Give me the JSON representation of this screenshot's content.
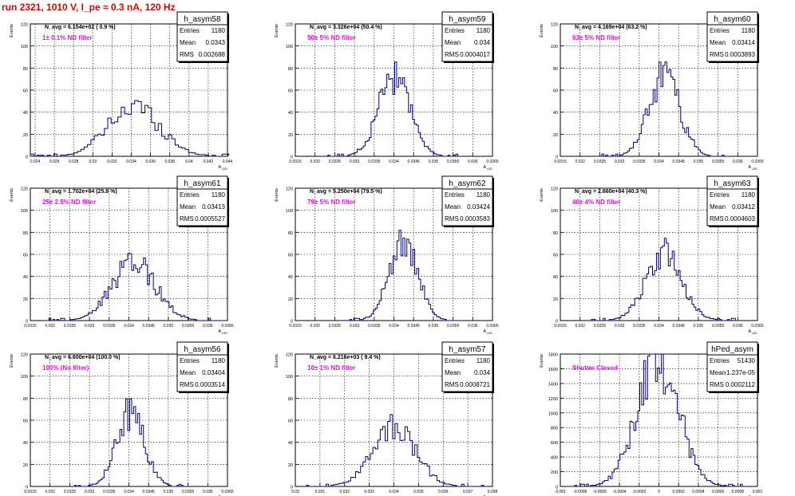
{
  "canvas_title": "run 2321,  1010 V, I_pe ≈ 0.3 nA, 120 Hz",
  "axis_labels": {
    "y": "Events",
    "x_main": "A",
    "x_sub": "LED"
  },
  "stats_labels": {
    "entries": "Entries",
    "mean": "Mean",
    "rms": "RMS"
  },
  "chart_data": [
    {
      "type": "bar",
      "hist": "h_asym58",
      "title": "",
      "xlabel": "A LED",
      "ylabel": "Events",
      "navg": "N_avg = 6.154e+02 ( 0.9 %)",
      "note": "1± 0.1% ND filter",
      "stats": {
        "entries": "1180",
        "mean": "0.0343",
        "rms": "0.002688"
      },
      "xlim": [
        0.0235,
        0.044
      ],
      "ylim": [
        0,
        120
      ],
      "xticks": [
        "0.024",
        "0.026",
        "0.028",
        "0.03",
        "0.032",
        "0.034",
        "0.036",
        "0.038",
        "0.04",
        "0.042",
        "0.044"
      ],
      "xtick_values": [
        0.024,
        0.026,
        0.028,
        0.03,
        0.032,
        0.034,
        0.036,
        0.038,
        0.04,
        0.042,
        0.044
      ],
      "yticks": [
        "0",
        "20",
        "40",
        "60",
        "80",
        "100",
        "120"
      ],
      "hist_mean": 0.0343,
      "hist_sigma": 0.0027,
      "hist_peak": 45,
      "bin_width": 0.00035
    },
    {
      "type": "bar",
      "hist": "h_asym59",
      "title": "",
      "xlabel": "A LED",
      "ylabel": "Events",
      "navg": "N_avg = 3.326e+04 (50.4 %)",
      "note": "50± 5% ND filter",
      "stats": {
        "entries": "1180",
        "mean": "0.034",
        "rms": "0.0004017"
      },
      "xlim": [
        0.0315,
        0.0365
      ],
      "ylim": [
        0,
        120
      ],
      "xticks": [
        "0.0315",
        "0.032",
        "0.0325",
        "0.033",
        "0.0335",
        "0.034",
        "0.0345",
        "0.035",
        "0.0355",
        "0.036",
        "0.0365"
      ],
      "xtick_values": [
        0.0315,
        0.032,
        0.0325,
        0.033,
        0.0335,
        0.034,
        0.0345,
        0.035,
        0.0355,
        0.036,
        0.0365
      ],
      "yticks": [
        "0",
        "20",
        "40",
        "60",
        "80",
        "100",
        "120"
      ],
      "hist_mean": 0.034,
      "hist_sigma": 0.0004,
      "hist_peak": 70,
      "bin_width": 5e-05
    },
    {
      "type": "bar",
      "hist": "h_asym60",
      "title": "",
      "xlabel": "A LED",
      "ylabel": "Events",
      "navg": "N_avg = 4.169e+04 (63.2 %)",
      "note": "63± 5% ND filter",
      "stats": {
        "entries": "1180",
        "mean": "0.03414",
        "rms": "0.0003893"
      },
      "xlim": [
        0.0315,
        0.0365
      ],
      "ylim": [
        0,
        120
      ],
      "xticks": [
        "0.0315",
        "0.032",
        "0.0325",
        "0.033",
        "0.0335",
        "0.034",
        "0.0345",
        "0.035",
        "0.0355",
        "0.036",
        "0.0365"
      ],
      "xtick_values": [
        0.0315,
        0.032,
        0.0325,
        0.033,
        0.0335,
        0.034,
        0.0345,
        0.035,
        0.0355,
        0.036,
        0.0365
      ],
      "yticks": [
        "0",
        "20",
        "40",
        "60",
        "80",
        "100",
        "120"
      ],
      "hist_mean": 0.03414,
      "hist_sigma": 0.00039,
      "hist_peak": 72,
      "bin_width": 5e-05
    },
    {
      "type": "bar",
      "hist": "h_asym61",
      "title": "",
      "xlabel": "A LED",
      "ylabel": "Events",
      "navg": "N_avg = 1.702e+04 (25.8 %)",
      "note": "25± 2.5% ND filter",
      "stats": {
        "entries": "1180",
        "mean": "0.03413",
        "rms": "0.0005527"
      },
      "xlim": [
        0.0315,
        0.0365
      ],
      "ylim": [
        0,
        120
      ],
      "xticks": [
        "0.0315",
        "0.032",
        "0.0325",
        "0.033",
        "0.0335",
        "0.034",
        "0.0345",
        "0.035",
        "0.0355",
        "0.036",
        "0.0365"
      ],
      "xtick_values": [
        0.0315,
        0.032,
        0.0325,
        0.033,
        0.0335,
        0.034,
        0.0345,
        0.035,
        0.0355,
        0.036,
        0.0365
      ],
      "yticks": [
        "0",
        "20",
        "40",
        "60",
        "80",
        "100",
        "120"
      ],
      "hist_mean": 0.03413,
      "hist_sigma": 0.00055,
      "hist_peak": 52,
      "bin_width": 5e-05
    },
    {
      "type": "bar",
      "hist": "h_asym62",
      "title": "",
      "xlabel": "A LED",
      "ylabel": "Events",
      "navg": "N_avg = 5.250e+04 (79.5 %)",
      "note": "79± 5% ND filter",
      "stats": {
        "entries": "1180",
        "mean": "0.03424",
        "rms": "0.0003583"
      },
      "xlim": [
        0.0315,
        0.0365
      ],
      "ylim": [
        0,
        120
      ],
      "xticks": [
        "0.0315",
        "0.032",
        "0.0325",
        "0.033",
        "0.0335",
        "0.034",
        "0.0345",
        "0.035",
        "0.0355",
        "0.036",
        "0.0365"
      ],
      "xtick_values": [
        0.0315,
        0.032,
        0.0325,
        0.033,
        0.0335,
        0.034,
        0.0345,
        0.035,
        0.0355,
        0.036,
        0.0365
      ],
      "yticks": [
        "0",
        "20",
        "40",
        "60",
        "80",
        "100",
        "120"
      ],
      "hist_mean": 0.03424,
      "hist_sigma": 0.00036,
      "hist_peak": 70,
      "bin_width": 5e-05
    },
    {
      "type": "bar",
      "hist": "h_asym63",
      "title": "",
      "xlabel": "A LED",
      "ylabel": "Events",
      "navg": "N_avg = 2.660e+04 (40.3 %)",
      "note": "40± 4% ND filter",
      "stats": {
        "entries": "1180",
        "mean": "0.03412",
        "rms": "0.0004603"
      },
      "xlim": [
        0.0315,
        0.0365
      ],
      "ylim": [
        0,
        120
      ],
      "xticks": [
        "0.0315",
        "0.032",
        "0.0325",
        "0.033",
        "0.0335",
        "0.034",
        "0.0345",
        "0.035",
        "0.0355",
        "0.036",
        "0.0365"
      ],
      "xtick_values": [
        0.0315,
        0.032,
        0.0325,
        0.033,
        0.0335,
        0.034,
        0.0345,
        0.035,
        0.0355,
        0.036,
        0.0365
      ],
      "yticks": [
        "0",
        "20",
        "40",
        "60",
        "80",
        "100",
        "120"
      ],
      "hist_mean": 0.03412,
      "hist_sigma": 0.00046,
      "hist_peak": 60,
      "bin_width": 5e-05
    },
    {
      "type": "bar",
      "hist": "h_asym56",
      "title": "",
      "xlabel": "A LED",
      "ylabel": "Events",
      "navg": "N_avg = 6.600e+04 (100.0 %)",
      "note": "100% (No filter)",
      "stats": {
        "entries": "1180",
        "mean": "0.03404",
        "rms": "0.0003514"
      },
      "xlim": [
        0.0315,
        0.0365
      ],
      "ylim": [
        0,
        120
      ],
      "xticks": [
        "0.0315",
        "0.032",
        "0.0325",
        "0.033",
        "0.0335",
        "0.034",
        "0.0345",
        "0.035",
        "0.0355",
        "0.036",
        "0.0365"
      ],
      "xtick_values": [
        0.0315,
        0.032,
        0.0325,
        0.033,
        0.0335,
        0.034,
        0.0345,
        0.035,
        0.0355,
        0.036,
        0.0365
      ],
      "yticks": [
        "0",
        "20",
        "40",
        "60",
        "80",
        "100",
        "120"
      ],
      "hist_mean": 0.03404,
      "hist_sigma": 0.00035,
      "hist_peak": 68,
      "bin_width": 5e-05
    },
    {
      "type": "bar",
      "hist": "h_asym57",
      "title": "",
      "xlabel": "A LED",
      "ylabel": "Events",
      "navg": "N_avg = 6.216e+03 ( 9.4 %)",
      "note": "10± 1% ND filter",
      "stats": {
        "entries": "1180",
        "mean": "0.034",
        "rms": "0.0008721"
      },
      "xlim": [
        0.03,
        0.038
      ],
      "ylim": [
        0,
        120
      ],
      "xticks": [
        "0.03",
        "0.031",
        "0.032",
        "0.033",
        "0.034",
        "0.035",
        "0.036",
        "0.037",
        "0.038"
      ],
      "xtick_values": [
        0.03,
        0.031,
        0.032,
        0.033,
        0.034,
        0.035,
        0.036,
        0.037,
        0.038
      ],
      "yticks": [
        "0",
        "20",
        "40",
        "60",
        "80",
        "100",
        "120"
      ],
      "hist_mean": 0.034,
      "hist_sigma": 0.00087,
      "hist_peak": 55,
      "bin_width": 0.0001
    },
    {
      "type": "bar",
      "hist": "hPed_asym",
      "title": "",
      "xlabel": "A LED",
      "ylabel": "Events",
      "navg": "",
      "note": "Shutter Closed",
      "stats": {
        "entries": "51430",
        "mean": "-1.237e-05",
        "rms": "0.0002112"
      },
      "xlim": [
        -0.001,
        0.001
      ],
      "ylim": [
        0,
        1800
      ],
      "xticks": [
        "-0.001",
        "-0.0008",
        "-0.0006",
        "-0.0004",
        "-0.0002",
        "0",
        "0.0002",
        "0.0004",
        "0.0006",
        "0.0008",
        "0.001"
      ],
      "xtick_values": [
        -0.001,
        -0.0008,
        -0.0006,
        -0.0004,
        -0.0002,
        0,
        0.0002,
        0.0004,
        0.0006,
        0.0008,
        0.001
      ],
      "yticks": [
        "0",
        "200",
        "400",
        "600",
        "800",
        "1000",
        "1200",
        "1400",
        "1600",
        "1800"
      ],
      "hist_mean": -1.24e-05,
      "hist_sigma": 0.00021,
      "hist_peak": 1760,
      "bin_width": 2e-05
    }
  ]
}
